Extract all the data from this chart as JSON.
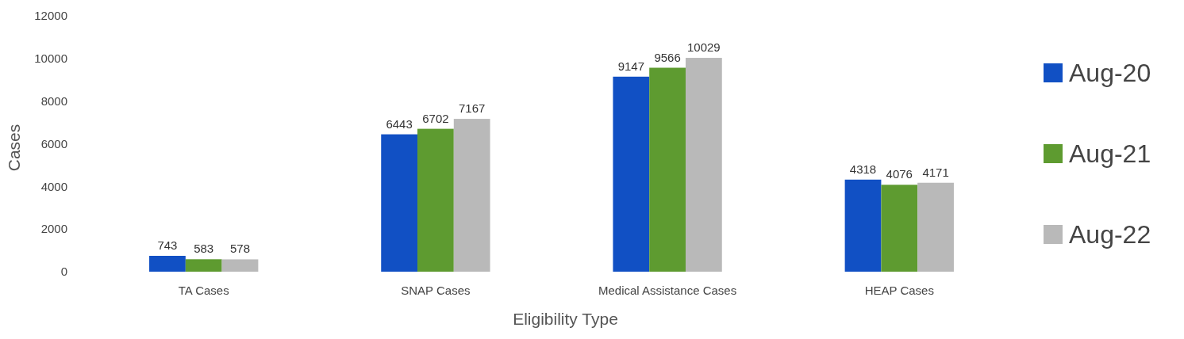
{
  "chart_data": {
    "type": "bar",
    "xlabel": "Eligibility Type",
    "ylabel": "Cases",
    "categories": [
      "TA Cases",
      "SNAP Cases",
      "Medical Assistance Cases",
      "HEAP Cases"
    ],
    "series": [
      {
        "name": "Aug-20",
        "color": "#1150c4",
        "values": [
          743,
          6443,
          9147,
          4318
        ]
      },
      {
        "name": "Aug-21",
        "color": "#5e9b30",
        "values": [
          583,
          6702,
          9566,
          4076
        ]
      },
      {
        "name": "Aug-22",
        "color": "#b9b9b9",
        "values": [
          578,
          7167,
          10029,
          4171
        ]
      }
    ],
    "ylim": [
      0,
      12000
    ],
    "yticks": [
      0,
      2000,
      4000,
      6000,
      8000,
      10000,
      12000
    ],
    "data_labels": true,
    "legend": "right"
  }
}
